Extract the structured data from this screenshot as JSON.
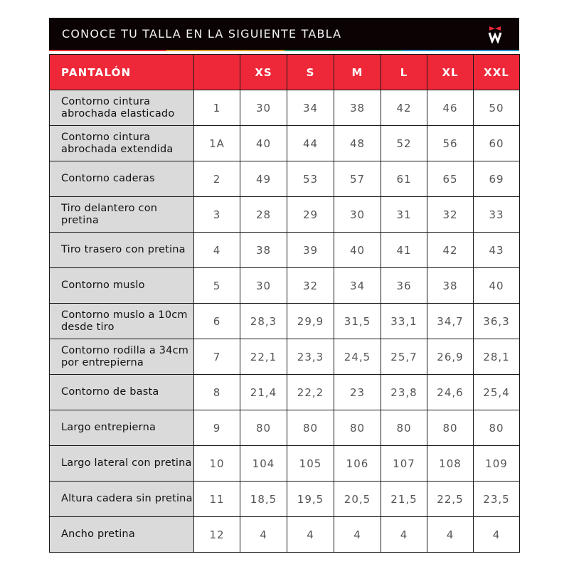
{
  "header": {
    "title": "CONOCE TU TALLA EN LA SIGUIENTE TABLA",
    "logo": "W",
    "stripe_colors": [
      "#e5282f",
      "#d69a1a",
      "#1f9a6a",
      "#1e8fd0"
    ]
  },
  "colors": {
    "header_bg": "#0a0203",
    "table_header_bg": "#ee2839",
    "label_bg": "#dadada"
  },
  "table": {
    "columns": [
      "PANTALÓN",
      "",
      "XS",
      "S",
      "M",
      "L",
      "XL",
      "XXL"
    ],
    "rows": [
      {
        "label": "Contorno cintura abrochada elasticado",
        "num": "1",
        "values": [
          "30",
          "34",
          "38",
          "42",
          "46",
          "50"
        ]
      },
      {
        "label": "Contorno cintura abrochada extendida",
        "num": "1A",
        "values": [
          "40",
          "44",
          "48",
          "52",
          "56",
          "60"
        ]
      },
      {
        "label": "Contorno caderas",
        "num": "2",
        "values": [
          "49",
          "53",
          "57",
          "61",
          "65",
          "69"
        ]
      },
      {
        "label": "Tiro delantero con pretina",
        "num": "3",
        "values": [
          "28",
          "29",
          "30",
          "31",
          "32",
          "33"
        ]
      },
      {
        "label": "Tiro trasero con pretina",
        "num": "4",
        "values": [
          "38",
          "39",
          "40",
          "41",
          "42",
          "43"
        ]
      },
      {
        "label": "Contorno muslo",
        "num": "5",
        "values": [
          "30",
          "32",
          "34",
          "36",
          "38",
          "40"
        ]
      },
      {
        "label": "Contorno muslo a 10cm desde tiro",
        "num": "6",
        "values": [
          "28,3",
          "29,9",
          "31,5",
          "33,1",
          "34,7",
          "36,3"
        ]
      },
      {
        "label": "Contorno rodilla a 34cm por entrepierna",
        "num": "7",
        "values": [
          "22,1",
          "23,3",
          "24,5",
          "25,7",
          "26,9",
          "28,1"
        ]
      },
      {
        "label": "Contorno de basta",
        "num": "8",
        "values": [
          "21,4",
          "22,2",
          "23",
          "23,8",
          "24,6",
          "25,4"
        ]
      },
      {
        "label": "Largo entrepierna",
        "num": "9",
        "values": [
          "80",
          "80",
          "80",
          "80",
          "80",
          "80"
        ]
      },
      {
        "label": "Largo lateral con pretina",
        "num": "10",
        "values": [
          "104",
          "105",
          "106",
          "107",
          "108",
          "109"
        ]
      },
      {
        "label": "Altura cadera sin pretina",
        "num": "11",
        "values": [
          "18,5",
          "19,5",
          "20,5",
          "21,5",
          "22,5",
          "23,5"
        ]
      },
      {
        "label": "Ancho pretina",
        "num": "12",
        "values": [
          "4",
          "4",
          "4",
          "4",
          "4",
          "4"
        ]
      }
    ]
  }
}
